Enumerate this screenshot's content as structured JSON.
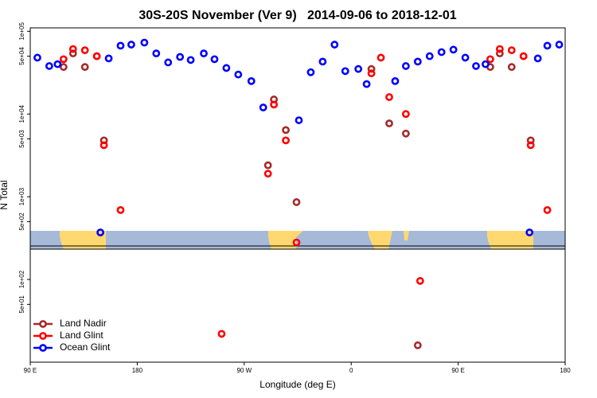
{
  "chart_data": {
    "type": "scatter",
    "title": "30S-20S November (Ver 9)   2014-09-06 to 2018-12-01",
    "x_label": "Longitude (deg E)",
    "y_label": "N Total",
    "log_y": true,
    "legend": "bottom-left",
    "xlim": [
      90,
      540
    ],
    "xticks": [
      {
        "value": 90,
        "label": "90 E"
      },
      180,
      {
        "value": 270,
        "label": "90 W"
      },
      {
        "value": 360,
        "label": "0"
      },
      {
        "value": 450,
        "label": "90 E"
      },
      {
        "value": 540,
        "label": "180"
      }
    ],
    "ylim": [
      10,
      110000
    ],
    "yticks": [
      {
        "value": 100000,
        "label": "1e+05"
      },
      {
        "value": 50000,
        "label": "5e+04"
      },
      {
        "value": 10000,
        "label": "1e+04"
      },
      {
        "value": 5000,
        "label": "5e+03"
      },
      {
        "value": 1000,
        "label": "1e+03"
      },
      {
        "value": 500,
        "label": "5e+02"
      },
      {
        "value": 100,
        "label": "1e+02"
      },
      {
        "value": 50,
        "label": "5e+01"
      }
    ],
    "series": [
      {
        "name": "Land Nadir",
        "color": "#a52a2a",
        "x": [
          118,
          126,
          136,
          146,
          152,
          290,
          295,
          305,
          314,
          377,
          392,
          406,
          416,
          477,
          485,
          495,
          505,
          511
        ],
        "values": [
          37000,
          54000,
          37000,
          50000,
          4800,
          2400,
          15000,
          6400,
          860,
          35000,
          7700,
          5800,
          16,
          37000,
          54000,
          37000,
          50000,
          4800
        ]
      },
      {
        "name": "Land Glint",
        "color": "#ff0000",
        "x": [
          118,
          126,
          136,
          146,
          152,
          166,
          251,
          290,
          295,
          305,
          314,
          377,
          385,
          392,
          406,
          418,
          477,
          485,
          495,
          505,
          511,
          525
        ],
        "values": [
          46000,
          61000,
          59000,
          50000,
          4200,
          690,
          22,
          1900,
          13000,
          4800,
          280,
          31000,
          48000,
          16000,
          10000,
          96,
          46000,
          61000,
          59000,
          50000,
          4200,
          690
        ]
      },
      {
        "name": "Ocean Glint",
        "color": "#0000ff",
        "x": [
          96,
          106,
          113,
          149,
          156,
          166,
          175,
          186,
          196,
          206,
          216,
          225,
          236,
          245,
          255,
          265,
          276,
          286,
          316,
          326,
          336,
          346,
          355,
          366,
          373,
          397,
          406,
          416,
          426,
          436,
          446,
          456,
          465,
          473,
          510,
          517,
          525,
          535
        ],
        "values": [
          48000,
          38000,
          40000,
          370,
          47000,
          67000,
          69000,
          73000,
          54000,
          42000,
          49000,
          45000,
          54000,
          46000,
          36000,
          30000,
          25000,
          12000,
          8400,
          32000,
          43000,
          69000,
          33000,
          35000,
          23000,
          25000,
          38000,
          43000,
          50000,
          56000,
          60000,
          48000,
          38000,
          40000,
          370,
          47000,
          67000,
          69000
        ]
      }
    ]
  }
}
